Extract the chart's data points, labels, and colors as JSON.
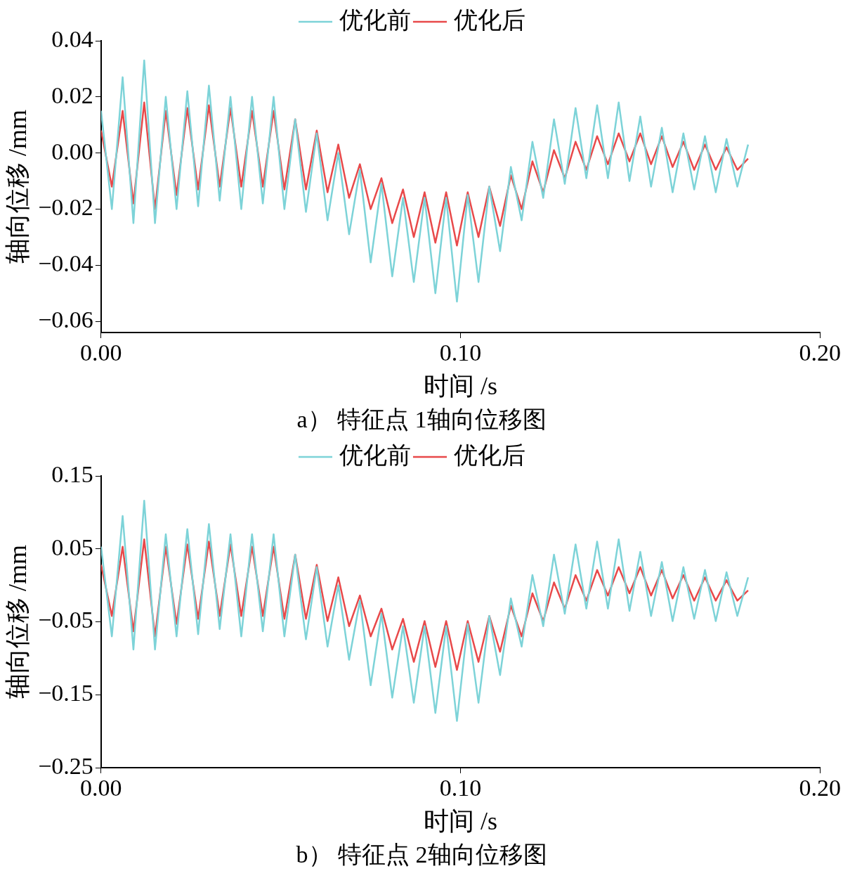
{
  "chart_data": [
    {
      "type": "line",
      "xlabel": "时间 /s",
      "ylabel": "轴向位移 /mm",
      "annotations": [
        "a） 特征点 1轴向位移图"
      ],
      "legend": "top",
      "grid": false,
      "x": [
        0,
        0.003,
        0.006,
        0.009,
        0.012,
        0.015,
        0.018,
        0.021,
        0.024,
        0.027,
        0.03,
        0.033,
        0.036,
        0.039,
        0.042,
        0.045,
        0.048,
        0.051,
        0.054,
        0.057,
        0.06,
        0.063,
        0.066,
        0.069,
        0.072,
        0.075,
        0.078,
        0.081,
        0.084,
        0.087,
        0.09,
        0.093,
        0.096,
        0.099,
        0.102,
        0.105,
        0.108,
        0.111,
        0.114,
        0.117,
        0.12,
        0.123,
        0.126,
        0.129,
        0.132,
        0.135,
        0.138,
        0.141,
        0.144,
        0.147,
        0.15,
        0.153,
        0.156,
        0.159,
        0.162,
        0.165,
        0.168,
        0.171,
        0.174,
        0.177,
        0.18
      ],
      "xlim": [
        0,
        0.2
      ],
      "xticks": [
        {
          "value": 0,
          "label": "0.00"
        },
        {
          "value": 0.1,
          "label": "0.10"
        },
        {
          "value": 0.2,
          "label": "0.20"
        }
      ],
      "ylim": [
        -0.064,
        0.04
      ],
      "yticks": [
        {
          "value": -0.06,
          "label": "−0.06"
        },
        {
          "value": -0.04,
          "label": "−0.04"
        },
        {
          "value": -0.02,
          "label": "−0.02"
        },
        {
          "value": 0,
          "label": "0.00"
        },
        {
          "value": 0.02,
          "label": "0.02"
        },
        {
          "value": 0.04,
          "label": "0.04"
        }
      ],
      "series": [
        {
          "name": "优化前",
          "color": "#7dd3d8",
          "values": [
            0.015,
            -0.02,
            0.027,
            -0.025,
            0.033,
            -0.025,
            0.02,
            -0.02,
            0.022,
            -0.019,
            0.024,
            -0.017,
            0.02,
            -0.02,
            0.02,
            -0.018,
            0.02,
            -0.02,
            0.012,
            -0.021,
            0.007,
            -0.024,
            0,
            -0.029,
            -0.006,
            -0.039,
            -0.011,
            -0.044,
            -0.016,
            -0.046,
            -0.016,
            -0.05,
            -0.016,
            -0.053,
            -0.015,
            -0.046,
            -0.012,
            -0.035,
            -0.005,
            -0.024,
            0.004,
            -0.016,
            0.012,
            -0.011,
            0.016,
            -0.009,
            0.017,
            -0.009,
            0.018,
            -0.01,
            0.013,
            -0.012,
            0.009,
            -0.014,
            0.007,
            -0.013,
            0.006,
            -0.014,
            0.005,
            -0.012,
            0.003
          ]
        },
        {
          "name": "优化后",
          "color": "#e8494a",
          "values": [
            0.008,
            -0.012,
            0.015,
            -0.018,
            0.018,
            -0.02,
            0.015,
            -0.015,
            0.016,
            -0.013,
            0.017,
            -0.012,
            0.016,
            -0.012,
            0.015,
            -0.012,
            0.015,
            -0.013,
            0.012,
            -0.013,
            0.008,
            -0.014,
            0.003,
            -0.016,
            -0.004,
            -0.02,
            -0.009,
            -0.025,
            -0.013,
            -0.03,
            -0.014,
            -0.032,
            -0.014,
            -0.033,
            -0.014,
            -0.03,
            -0.012,
            -0.026,
            -0.008,
            -0.02,
            -0.003,
            -0.014,
            0.001,
            -0.009,
            0.004,
            -0.006,
            0.006,
            -0.004,
            0.007,
            -0.003,
            0.007,
            -0.004,
            0.006,
            -0.005,
            0.004,
            -0.006,
            0.003,
            -0.006,
            0.002,
            -0.006,
            -0.002
          ]
        }
      ]
    },
    {
      "type": "line",
      "xlabel": "时间 /s",
      "ylabel": "轴向位移 /mm",
      "annotations": [
        "b） 特征点 2轴向位移图"
      ],
      "legend": "top",
      "grid": false,
      "x": [
        0,
        0.003,
        0.006,
        0.009,
        0.012,
        0.015,
        0.018,
        0.021,
        0.024,
        0.027,
        0.03,
        0.033,
        0.036,
        0.039,
        0.042,
        0.045,
        0.048,
        0.051,
        0.054,
        0.057,
        0.06,
        0.063,
        0.066,
        0.069,
        0.072,
        0.075,
        0.078,
        0.081,
        0.084,
        0.087,
        0.09,
        0.093,
        0.096,
        0.099,
        0.102,
        0.105,
        0.108,
        0.111,
        0.114,
        0.117,
        0.12,
        0.123,
        0.126,
        0.129,
        0.132,
        0.135,
        0.138,
        0.141,
        0.144,
        0.147,
        0.15,
        0.153,
        0.156,
        0.159,
        0.162,
        0.165,
        0.168,
        0.171,
        0.174,
        0.177,
        0.18
      ],
      "xlim": [
        0,
        0.2
      ],
      "xticks": [
        {
          "value": 0,
          "label": "0.00"
        },
        {
          "value": 0.1,
          "label": "0.10"
        },
        {
          "value": 0.2,
          "label": "0.20"
        }
      ],
      "ylim": [
        -0.25,
        0.15
      ],
      "yticks": [
        {
          "value": -0.25,
          "label": "−0.25"
        },
        {
          "value": -0.15,
          "label": "−0.15"
        },
        {
          "value": -0.05,
          "label": "−0.05"
        },
        {
          "value": 0.05,
          "label": "0.05"
        },
        {
          "value": 0.15,
          "label": "0.15"
        }
      ],
      "series": [
        {
          "name": "优化前",
          "color": "#7dd3d8",
          "values": [
            0.053,
            -0.07,
            0.095,
            -0.088,
            0.116,
            -0.088,
            0.07,
            -0.07,
            0.077,
            -0.067,
            0.084,
            -0.06,
            0.07,
            -0.07,
            0.07,
            -0.063,
            0.07,
            -0.07,
            0.042,
            -0.074,
            0.025,
            -0.084,
            0,
            -0.102,
            -0.021,
            -0.137,
            -0.039,
            -0.154,
            -0.056,
            -0.161,
            -0.056,
            -0.175,
            -0.056,
            -0.186,
            -0.053,
            -0.161,
            -0.042,
            -0.123,
            -0.018,
            -0.084,
            0.014,
            -0.056,
            0.042,
            -0.039,
            0.056,
            -0.032,
            0.06,
            -0.032,
            0.063,
            -0.035,
            0.046,
            -0.042,
            0.032,
            -0.049,
            0.025,
            -0.046,
            0.021,
            -0.049,
            0.018,
            -0.042,
            0.011
          ]
        },
        {
          "name": "优化后",
          "color": "#e8494a",
          "values": [
            0.028,
            -0.042,
            0.053,
            -0.063,
            0.063,
            -0.07,
            0.053,
            -0.053,
            0.056,
            -0.046,
            0.06,
            -0.042,
            0.056,
            -0.042,
            0.053,
            -0.042,
            0.053,
            -0.046,
            0.042,
            -0.046,
            0.028,
            -0.049,
            0.011,
            -0.056,
            -0.014,
            -0.07,
            -0.032,
            -0.088,
            -0.046,
            -0.105,
            -0.049,
            -0.112,
            -0.049,
            -0.116,
            -0.049,
            -0.105,
            -0.042,
            -0.091,
            -0.028,
            -0.07,
            -0.011,
            -0.049,
            0.004,
            -0.032,
            0.014,
            -0.021,
            0.021,
            -0.014,
            0.025,
            -0.011,
            0.025,
            -0.014,
            0.021,
            -0.018,
            0.014,
            -0.021,
            0.011,
            -0.021,
            0.007,
            -0.021,
            -0.007
          ]
        }
      ]
    }
  ]
}
